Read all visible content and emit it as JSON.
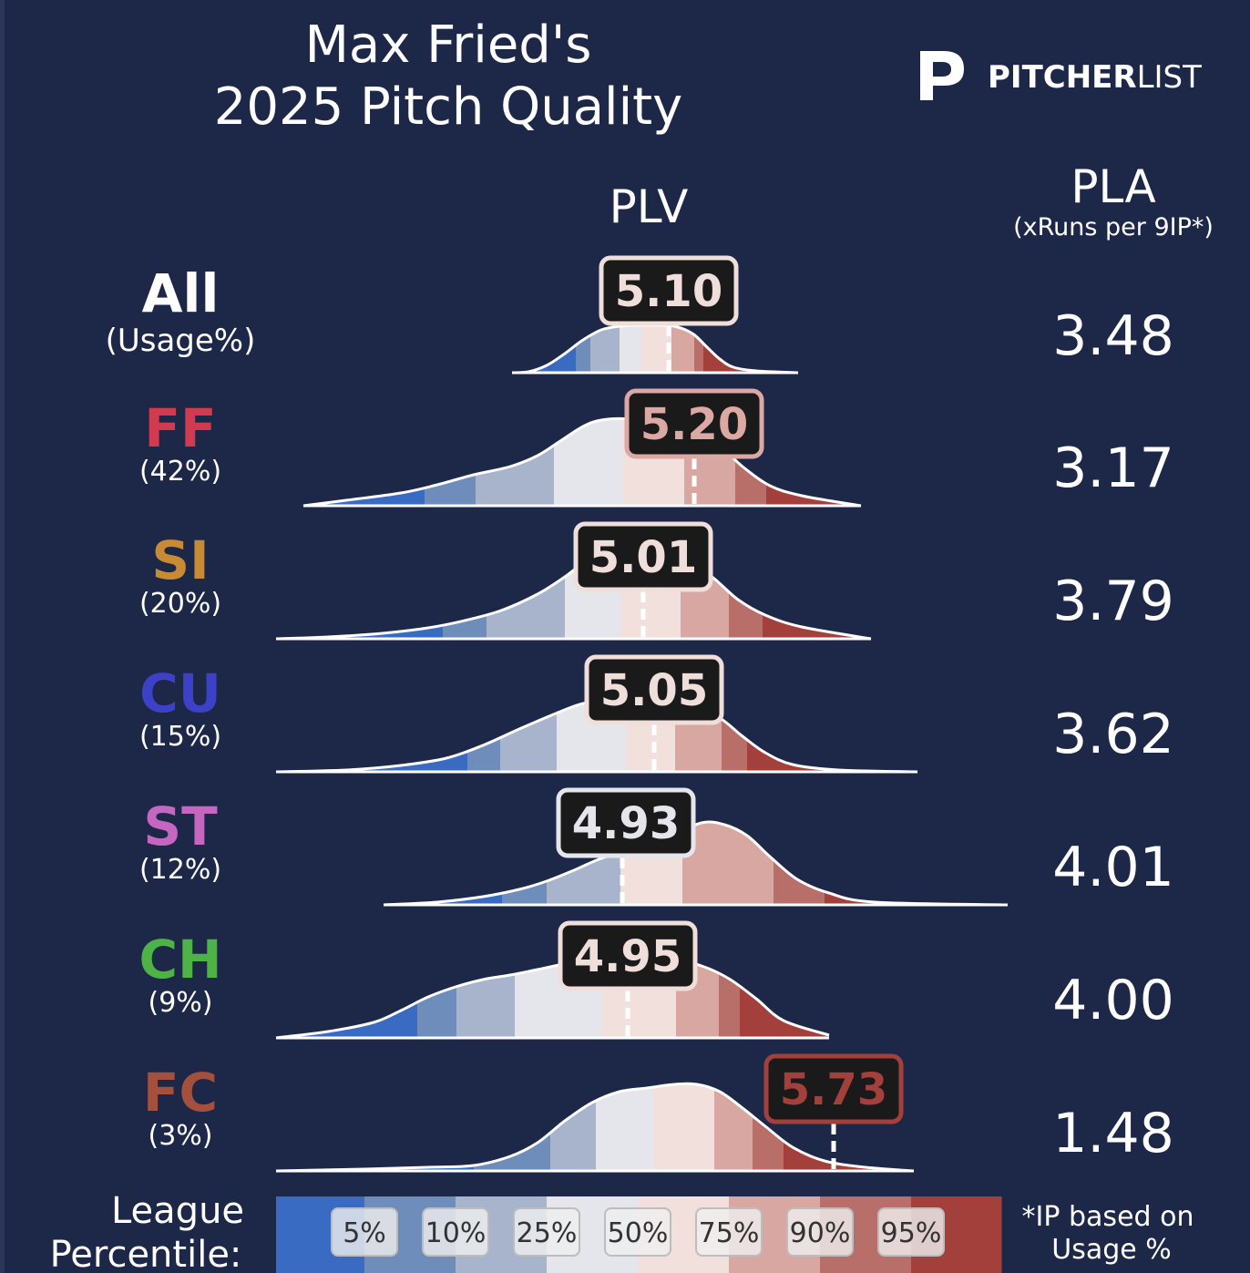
{
  "title_line1": "Max Fried's",
  "title_line2": "2025 Pitch Quality",
  "brand": {
    "bold": "PITCHER",
    "light": "LIST"
  },
  "columns": {
    "plv": "PLV",
    "pla": "PLA",
    "pla_sub": "(xRuns per 9IP*)"
  },
  "legend": {
    "label_line1": "League",
    "label_line2": "Percentile:",
    "percentiles": [
      "5%",
      "10%",
      "25%",
      "50%",
      "75%",
      "90%",
      "95%"
    ],
    "note_line1": "*IP based on",
    "note_line2": "Usage %"
  },
  "colors": {
    "background": "#1d2849",
    "ramp": [
      "#3a6bc2",
      "#6f8dbb",
      "#a7b4cc",
      "#e4e6eb",
      "#f2e0dc",
      "#d8a7a1",
      "#b86f6a",
      "#a3403c"
    ]
  },
  "chart_data": {
    "type": "density-ridgeline",
    "x_axis": "PLV",
    "rows": [
      {
        "pitch": "All",
        "usage": "(Usage%)",
        "name_color": "#ffffff",
        "plv": "5.10",
        "plv_value": 5.1,
        "pla": "3.48",
        "label_border": "#f0dedb",
        "label_text": "#f0dedb"
      },
      {
        "pitch": "FF",
        "usage": "(42%)",
        "name_color": "#d23b4f",
        "plv": "5.20",
        "plv_value": 5.2,
        "pla": "3.17",
        "label_border": "#dca8a3",
        "label_text": "#dca8a3"
      },
      {
        "pitch": "SI",
        "usage": "(20%)",
        "name_color": "#c88a33",
        "plv": "5.01",
        "plv_value": 5.01,
        "pla": "3.79",
        "label_border": "#f0dedb",
        "label_text": "#f0dedb"
      },
      {
        "pitch": "CU",
        "usage": "(15%)",
        "name_color": "#3d41c8",
        "plv": "5.05",
        "plv_value": 5.05,
        "pla": "3.62",
        "label_border": "#f0dedb",
        "label_text": "#f0dedb"
      },
      {
        "pitch": "ST",
        "usage": "(12%)",
        "name_color": "#c566c0",
        "plv": "4.93",
        "plv_value": 4.93,
        "pla": "4.01",
        "label_border": "#e4e6eb",
        "label_text": "#e4e6eb"
      },
      {
        "pitch": "CH",
        "usage": "(9%)",
        "name_color": "#4db347",
        "plv": "4.95",
        "plv_value": 4.95,
        "pla": "4.00",
        "label_border": "#f0dedb",
        "label_text": "#f0dedb"
      },
      {
        "pitch": "FC",
        "usage": "(3%)",
        "name_color": "#a5503c",
        "plv": "5.73",
        "plv_value": 5.73,
        "pla": "1.48",
        "label_border": "#a3403c",
        "label_text": "#a3403c"
      }
    ]
  }
}
